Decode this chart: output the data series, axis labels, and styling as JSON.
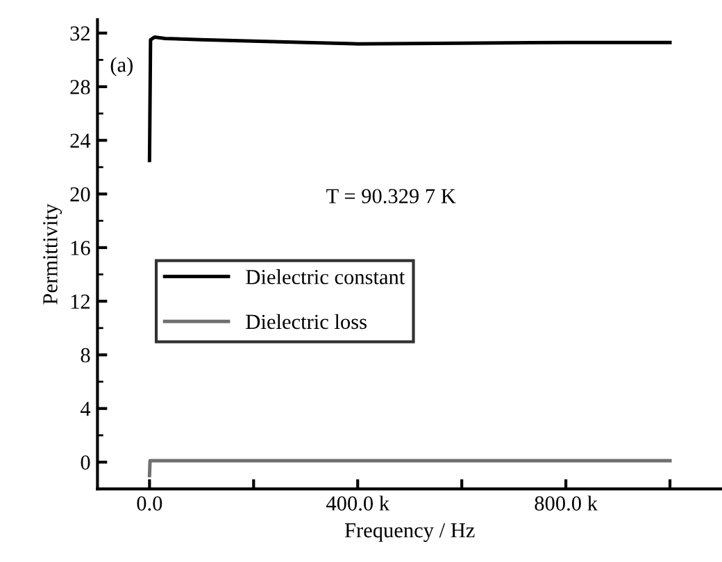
{
  "chart_data": {
    "type": "line",
    "xlabel": "Frequency / Hz",
    "ylabel": "Permittivity",
    "annotations": [
      "(a)",
      "T = 90.329 7 K"
    ],
    "xlim": [
      -100000,
      1100000
    ],
    "ylim": [
      -2,
      33
    ],
    "xticks": [
      {
        "value": 0,
        "label": "0.0"
      },
      {
        "value": 200000,
        "label": null
      },
      {
        "value": 400000,
        "label": "400.0 k"
      },
      {
        "value": 600000,
        "label": null
      },
      {
        "value": 800000,
        "label": "800.0 k"
      },
      {
        "value": 1000000,
        "label": null
      }
    ],
    "yticks": [
      0,
      4,
      8,
      12,
      16,
      20,
      24,
      28,
      32
    ],
    "grid": false,
    "legend": "center",
    "marker": "none",
    "line_style": "solid",
    "series": [
      {
        "name": "Dielectric constant",
        "color": "#000000",
        "x": [
          0,
          2000,
          10000,
          30000,
          100000,
          200000,
          300000,
          400000,
          600000,
          800000,
          1000000
        ],
        "values": [
          22.5,
          31.5,
          31.7,
          31.6,
          31.5,
          31.4,
          31.3,
          31.2,
          31.25,
          31.3,
          31.3
        ]
      },
      {
        "name": "Dielectric loss",
        "color": "#707070",
        "x": [
          0,
          1000,
          5000,
          100000,
          400000,
          800000,
          1000000
        ],
        "values": [
          -1,
          0.1,
          0.1,
          0.1,
          0.1,
          0.1,
          0.1
        ]
      }
    ]
  }
}
